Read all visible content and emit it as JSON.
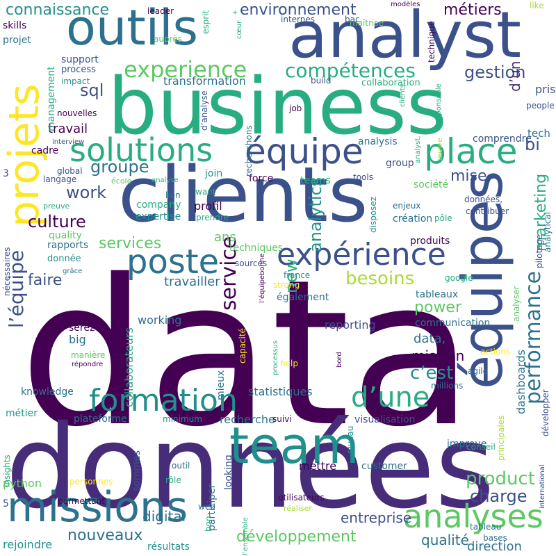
{
  "words": [
    "data",
    "données",
    "business",
    "clients",
    "analyst",
    "équipes",
    "outils",
    "team",
    "missions",
    "projets",
    "formation",
    "poste",
    "expérience",
    "équipe",
    "place",
    "solutions",
    "analyses",
    "d’une",
    "experience",
    "compétences",
    "environnement",
    "connaissance",
    "métiers",
    "gestion",
    "performance",
    "marketing",
    "bi",
    "culture",
    "groupe",
    "work",
    "services",
    "mise",
    "sql",
    "besoins",
    "faire",
    "l’équipe",
    "service",
    "analytics",
    "new",
    "power",
    "c’est",
    "mission",
    "data,",
    "product",
    "charge",
    "digital",
    "entreprise",
    "développement",
    "qualité",
    "nouveaux",
    "direction",
    "travailler",
    "travail",
    "management",
    "ans",
    "profil",
    "skills",
    "projet",
    "support",
    "process",
    "impact",
    "transformation",
    "collaboration",
    "prise",
    "d’un",
    "tech",
    "comprendre",
    "analysis",
    "group",
    "force",
    "teams",
    "tools",
    "join",
    "company",
    "expertise",
    "quality",
    "rapports",
    "donnée",
    "working",
    "big",
    "statistiques",
    "knowledge",
    "métier",
    "plateforme",
    "sommes",
    "minimum",
    "recherche",
    "suivi",
    "niveau",
    "visualisation",
    "customer",
    "mettre",
    "looking",
    "participer",
    "utilisateurs",
    "python",
    "personnes",
    "rejoindre",
    "résultats",
    "bases",
    "tableau",
    "conseil",
    "agile",
    "millions",
    "dashboards",
    "reporting",
    "communication",
    "tableaux",
    "google",
    "analyser",
    "pilotage",
    "analytical",
    "produits",
    "également",
    "sources",
    "france",
    "strong",
    "capacité",
    "processus",
    "help",
    "actions",
    "réaliser",
    "web",
    "insights",
    "international",
    "développer",
    "principales",
    "nécessaires",
    "langage",
    "global",
    "preuve",
    "école",
    "analyse",
    "lien",
    "want",
    "prendre",
    "disposez",
    "enjeux",
    "création",
    "pôle",
    "contribuer",
    "données,",
    "people",
    "maîtrise",
    "internes",
    "bac",
    "leader",
    "esprit",
    "cœur",
    "modèles",
    "like",
    "technique",
    "responsable",
    "clients,",
    "analyst,",
    "œuvre",
    "interview",
    "nouvelles",
    "cadre",
    "auprès",
    "d’analyse",
    "job",
    "build",
    "recherchons",
    "serez",
    "manière",
    "répondre",
    "permettant",
    "rôle",
    "l’ensemble",
    "bon",
    "l’équipebonne",
    "mieux",
    "collaborateurs",
    "techniques",
    "grâce",
    "improve",
    "bord",
    "société",
    "outil",
    "3",
    "5",
    "-",
    "+",
    "«"
  ],
  "palette": [
    "#440154",
    "#472c7a",
    "#3b518b",
    "#2c718e",
    "#21908d",
    "#27ad81",
    "#5cc863",
    "#aadc32",
    "#fde725"
  ],
  "background": "#ffffff"
}
